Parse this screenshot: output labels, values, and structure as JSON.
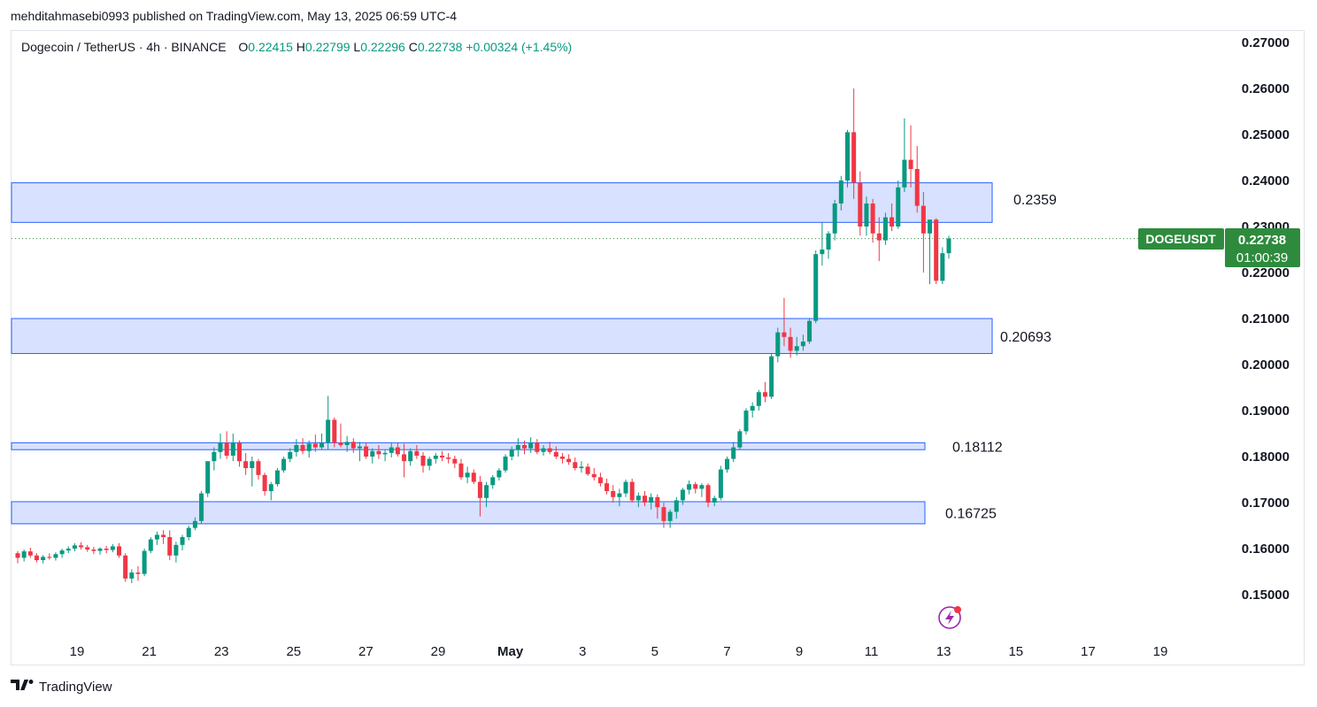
{
  "header": {
    "text": "mehditahmasebi0993 published on TradingView.com, May 13, 2025 06:59 UTC-4"
  },
  "legend": {
    "symbol": "Dogecoin / TetherUS · 4h · BINANCE",
    "o_label": "O",
    "o": "0.22415",
    "h_label": "H",
    "h": "0.22799",
    "l_label": "L",
    "l": "0.22296",
    "c_label": "C",
    "c": "0.22738",
    "change": "+0.00324 (+1.45%)"
  },
  "price_tag": {
    "symbol": "DOGEUSDT",
    "price": "0.22738",
    "countdown": "01:00:39"
  },
  "footer": {
    "brand": "TradingView"
  },
  "colors": {
    "up": "#089981",
    "down": "#f23645",
    "zone_fill": "#d1dcff",
    "zone_stroke": "#2962ff",
    "tag_bg": "#2e8b3d"
  },
  "icons": {
    "flash": "lightning-icon",
    "logo": "tradingview-logo-icon"
  },
  "chart_data": {
    "type": "candlestick",
    "timeframe": "4h",
    "ylim": [
      0.143,
      0.275
    ],
    "y_ticks": [
      "0.27000",
      "0.26000",
      "0.25000",
      "0.24000",
      "0.23000",
      "0.22000",
      "0.21000",
      "0.20000",
      "0.19000",
      "0.18000",
      "0.17000",
      "0.16000",
      "0.15000"
    ],
    "x_ticks": [
      "19",
      "21",
      "23",
      "25",
      "27",
      "29",
      "May",
      "3",
      "5",
      "7",
      "9",
      "11",
      "13",
      "15",
      "17",
      "19"
    ],
    "zones": [
      {
        "label": "0.2359",
        "low": 0.2309,
        "high": 0.2395
      },
      {
        "label": "0.20693",
        "low": 0.2024,
        "high": 0.21
      },
      {
        "label": "0.18112",
        "low": 0.1815,
        "high": 0.183
      },
      {
        "label": "0.16725",
        "low": 0.1654,
        "high": 0.1702
      }
    ],
    "last_price": 0.22738,
    "candles": [
      [
        0.159,
        0.1595,
        0.1568,
        0.158
      ],
      [
        0.158,
        0.1598,
        0.1572,
        0.1594
      ],
      [
        0.1594,
        0.1602,
        0.158,
        0.1585
      ],
      [
        0.1585,
        0.159,
        0.157,
        0.1575
      ],
      [
        0.1575,
        0.1586,
        0.1568,
        0.1582
      ],
      [
        0.1582,
        0.159,
        0.1576,
        0.158
      ],
      [
        0.158,
        0.1592,
        0.1574,
        0.1588
      ],
      [
        0.1588,
        0.16,
        0.158,
        0.1596
      ],
      [
        0.1596,
        0.1605,
        0.159,
        0.16
      ],
      [
        0.16,
        0.1612,
        0.1594,
        0.1607
      ],
      [
        0.1607,
        0.1614,
        0.1598,
        0.1603
      ],
      [
        0.1603,
        0.1608,
        0.1593,
        0.1598
      ],
      [
        0.1598,
        0.1604,
        0.1588,
        0.1595
      ],
      [
        0.1595,
        0.1603,
        0.1587,
        0.16
      ],
      [
        0.16,
        0.1606,
        0.159,
        0.1597
      ],
      [
        0.1597,
        0.161,
        0.1592,
        0.1605
      ],
      [
        0.1605,
        0.1612,
        0.158,
        0.1585
      ],
      [
        0.1585,
        0.159,
        0.1528,
        0.1535
      ],
      [
        0.1535,
        0.1555,
        0.1525,
        0.1548
      ],
      [
        0.1548,
        0.1562,
        0.153,
        0.1545
      ],
      [
        0.1545,
        0.16,
        0.154,
        0.1595
      ],
      [
        0.1595,
        0.1625,
        0.159,
        0.162
      ],
      [
        0.162,
        0.1637,
        0.1608,
        0.163
      ],
      [
        0.163,
        0.164,
        0.161,
        0.1625
      ],
      [
        0.1625,
        0.164,
        0.1575,
        0.1585
      ],
      [
        0.1585,
        0.1615,
        0.157,
        0.1608
      ],
      [
        0.1608,
        0.163,
        0.1596,
        0.1625
      ],
      [
        0.1625,
        0.165,
        0.1618,
        0.1645
      ],
      [
        0.1645,
        0.1668,
        0.164,
        0.166
      ],
      [
        0.166,
        0.1725,
        0.1655,
        0.172
      ],
      [
        0.172,
        0.178,
        0.1712,
        0.179
      ],
      [
        0.179,
        0.182,
        0.177,
        0.181
      ],
      [
        0.181,
        0.185,
        0.1795,
        0.183
      ],
      [
        0.183,
        0.1855,
        0.1795,
        0.1802
      ],
      [
        0.1802,
        0.185,
        0.179,
        0.183
      ],
      [
        0.183,
        0.1835,
        0.1778,
        0.179
      ],
      [
        0.179,
        0.1808,
        0.176,
        0.1775
      ],
      [
        0.1775,
        0.18,
        0.1735,
        0.179
      ],
      [
        0.179,
        0.1795,
        0.175,
        0.176
      ],
      [
        0.176,
        0.1765,
        0.1715,
        0.1725
      ],
      [
        0.1725,
        0.1745,
        0.1705,
        0.174
      ],
      [
        0.174,
        0.1775,
        0.1735,
        0.177
      ],
      [
        0.177,
        0.18,
        0.1765,
        0.1795
      ],
      [
        0.1795,
        0.1818,
        0.1788,
        0.181
      ],
      [
        0.181,
        0.1838,
        0.18,
        0.1825
      ],
      [
        0.1825,
        0.184,
        0.1805,
        0.1812
      ],
      [
        0.1812,
        0.1835,
        0.1798,
        0.1828
      ],
      [
        0.1828,
        0.1848,
        0.181,
        0.182
      ],
      [
        0.182,
        0.185,
        0.1815,
        0.183
      ],
      [
        0.183,
        0.1932,
        0.1815,
        0.188
      ],
      [
        0.188,
        0.1885,
        0.182,
        0.183
      ],
      [
        0.183,
        0.1872,
        0.182,
        0.1825
      ],
      [
        0.1825,
        0.1845,
        0.181,
        0.1832
      ],
      [
        0.1832,
        0.184,
        0.1808,
        0.1818
      ],
      [
        0.1818,
        0.1832,
        0.179,
        0.1822
      ],
      [
        0.1822,
        0.183,
        0.1795,
        0.18
      ],
      [
        0.18,
        0.1818,
        0.1785,
        0.1812
      ],
      [
        0.1812,
        0.1825,
        0.1795,
        0.1805
      ],
      [
        0.1805,
        0.1815,
        0.179,
        0.1808
      ],
      [
        0.1808,
        0.183,
        0.1798,
        0.182
      ],
      [
        0.182,
        0.183,
        0.18,
        0.1805
      ],
      [
        0.1805,
        0.1828,
        0.1755,
        0.179
      ],
      [
        0.179,
        0.1818,
        0.178,
        0.1812
      ],
      [
        0.1812,
        0.1825,
        0.1795,
        0.1802
      ],
      [
        0.1802,
        0.181,
        0.1765,
        0.178
      ],
      [
        0.178,
        0.18,
        0.177,
        0.1795
      ],
      [
        0.1795,
        0.1808,
        0.1785,
        0.1802
      ],
      [
        0.1802,
        0.1812,
        0.179,
        0.1798
      ],
      [
        0.1798,
        0.1808,
        0.1785,
        0.1795
      ],
      [
        0.1795,
        0.1802,
        0.1775,
        0.1785
      ],
      [
        0.1785,
        0.1795,
        0.175,
        0.1755
      ],
      [
        0.1755,
        0.1778,
        0.1742,
        0.1765
      ],
      [
        0.1765,
        0.1772,
        0.174,
        0.1745
      ],
      [
        0.1745,
        0.1758,
        0.167,
        0.171
      ],
      [
        0.171,
        0.1745,
        0.169,
        0.1738
      ],
      [
        0.1738,
        0.176,
        0.173,
        0.1755
      ],
      [
        0.1755,
        0.1775,
        0.1748,
        0.177
      ],
      [
        0.177,
        0.1805,
        0.1765,
        0.18
      ],
      [
        0.18,
        0.1822,
        0.1792,
        0.1815
      ],
      [
        0.1815,
        0.184,
        0.18,
        0.1825
      ],
      [
        0.1825,
        0.1835,
        0.1805,
        0.1818
      ],
      [
        0.1818,
        0.1842,
        0.1808,
        0.183
      ],
      [
        0.183,
        0.1838,
        0.1805,
        0.181
      ],
      [
        0.181,
        0.1825,
        0.1802,
        0.1818
      ],
      [
        0.1818,
        0.1832,
        0.1805,
        0.181
      ],
      [
        0.181,
        0.1822,
        0.1795,
        0.18
      ],
      [
        0.18,
        0.1808,
        0.1785,
        0.1795
      ],
      [
        0.1795,
        0.1805,
        0.1782,
        0.1788
      ],
      [
        0.1788,
        0.1798,
        0.177,
        0.1775
      ],
      [
        0.1775,
        0.179,
        0.1765,
        0.1778
      ],
      [
        0.1778,
        0.1785,
        0.1758,
        0.1762
      ],
      [
        0.1762,
        0.1775,
        0.1748,
        0.1755
      ],
      [
        0.1755,
        0.1765,
        0.1735,
        0.1742
      ],
      [
        0.1742,
        0.1752,
        0.1718,
        0.1725
      ],
      [
        0.1725,
        0.1738,
        0.17,
        0.1712
      ],
      [
        0.1712,
        0.173,
        0.1692,
        0.172
      ],
      [
        0.172,
        0.175,
        0.1712,
        0.1745
      ],
      [
        0.1745,
        0.1752,
        0.17,
        0.1705
      ],
      [
        0.1705,
        0.1722,
        0.169,
        0.1715
      ],
      [
        0.1715,
        0.1725,
        0.1692,
        0.17
      ],
      [
        0.17,
        0.172,
        0.1685,
        0.1712
      ],
      [
        0.1712,
        0.1718,
        0.1665,
        0.169
      ],
      [
        0.169,
        0.17,
        0.1645,
        0.166
      ],
      [
        0.166,
        0.1685,
        0.1645,
        0.168
      ],
      [
        0.168,
        0.1712,
        0.1665,
        0.1705
      ],
      [
        0.1705,
        0.1732,
        0.1695,
        0.1728
      ],
      [
        0.1728,
        0.1748,
        0.1718,
        0.174
      ],
      [
        0.174,
        0.1745,
        0.172,
        0.173
      ],
      [
        0.173,
        0.1742,
        0.1712,
        0.1738
      ],
      [
        0.1738,
        0.1742,
        0.169,
        0.17
      ],
      [
        0.17,
        0.1715,
        0.1692,
        0.171
      ],
      [
        0.171,
        0.178,
        0.1705,
        0.1772
      ],
      [
        0.1772,
        0.18,
        0.1765,
        0.1795
      ],
      [
        0.1795,
        0.1832,
        0.1788,
        0.182
      ],
      [
        0.182,
        0.186,
        0.1815,
        0.1855
      ],
      [
        0.1855,
        0.1905,
        0.1848,
        0.19
      ],
      [
        0.19,
        0.1918,
        0.1885,
        0.191
      ],
      [
        0.191,
        0.1945,
        0.19,
        0.194
      ],
      [
        0.194,
        0.1962,
        0.1918,
        0.193
      ],
      [
        0.193,
        0.2025,
        0.1925,
        0.2018
      ],
      [
        0.2018,
        0.208,
        0.2005,
        0.207
      ],
      [
        0.207,
        0.2145,
        0.204,
        0.206
      ],
      [
        0.206,
        0.208,
        0.2015,
        0.203
      ],
      [
        0.203,
        0.206,
        0.202,
        0.204
      ],
      [
        0.204,
        0.2065,
        0.203,
        0.205
      ],
      [
        0.205,
        0.21,
        0.2045,
        0.2095
      ],
      [
        0.2095,
        0.2248,
        0.209,
        0.224
      ],
      [
        0.224,
        0.231,
        0.2215,
        0.225
      ],
      [
        0.225,
        0.229,
        0.223,
        0.2285
      ],
      [
        0.2285,
        0.2358,
        0.227,
        0.235
      ],
      [
        0.235,
        0.241,
        0.2335,
        0.24
      ],
      [
        0.24,
        0.251,
        0.2385,
        0.2505
      ],
      [
        0.2505,
        0.26,
        0.236,
        0.2395
      ],
      [
        0.2395,
        0.242,
        0.228,
        0.23
      ],
      [
        0.23,
        0.2365,
        0.228,
        0.235
      ],
      [
        0.235,
        0.236,
        0.2265,
        0.2285
      ],
      [
        0.2285,
        0.232,
        0.2225,
        0.227
      ],
      [
        0.227,
        0.233,
        0.226,
        0.232
      ],
      [
        0.232,
        0.235,
        0.229,
        0.23
      ],
      [
        0.23,
        0.24,
        0.2295,
        0.2385
      ],
      [
        0.2385,
        0.2535,
        0.2375,
        0.2445
      ],
      [
        0.2445,
        0.252,
        0.2385,
        0.2425
      ],
      [
        0.2425,
        0.2475,
        0.233,
        0.2345
      ],
      [
        0.2345,
        0.2375,
        0.22,
        0.2285
      ],
      [
        0.2285,
        0.2315,
        0.2175,
        0.2315
      ],
      [
        0.2315,
        0.2318,
        0.2175,
        0.2182
      ],
      [
        0.2182,
        0.2255,
        0.2175,
        0.2242
      ],
      [
        0.2242,
        0.228,
        0.223,
        0.2274
      ]
    ]
  }
}
